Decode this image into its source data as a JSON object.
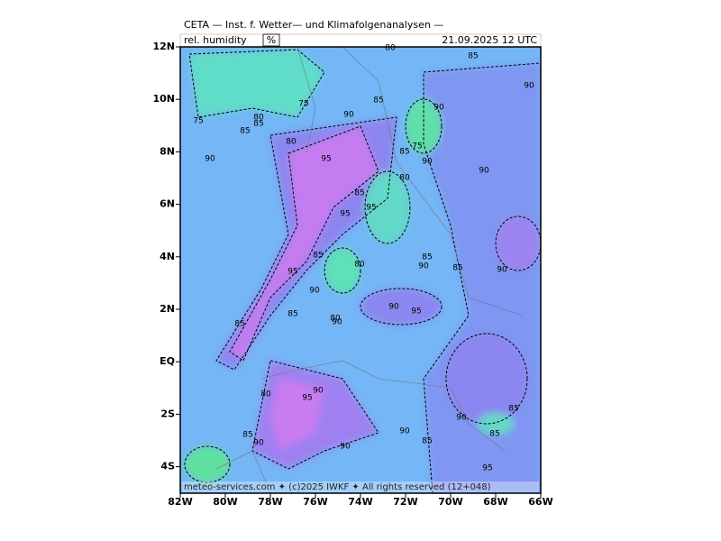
{
  "header": {
    "title": "CETA — Inst. f. Wetter— und Klimafolgenanalysen —",
    "variable": "rel. humidity",
    "unit": "%",
    "datetime": "21.09.2025 12 UTC"
  },
  "axes": {
    "lat_labels": [
      "12N",
      "10N",
      "8N",
      "6N",
      "4N",
      "2N",
      "EQ",
      "2S",
      "4S"
    ],
    "lon_labels": [
      "82W",
      "80W",
      "78W",
      "76W",
      "74W",
      "72W",
      "70W",
      "68W",
      "66W"
    ]
  },
  "contour_labels": [
    80,
    85,
    90,
    75,
    75,
    90,
    85,
    90,
    80,
    85,
    85,
    90,
    80,
    95,
    75,
    85,
    90,
    90,
    80,
    85,
    95,
    95,
    85,
    95,
    80,
    85,
    90,
    85,
    90,
    90,
    90,
    95,
    85,
    80,
    90,
    85,
    80,
    90,
    95,
    90,
    85,
    90,
    85,
    90,
    90,
    85,
    85,
    95
  ],
  "footer": "meteo-services.com ✦ (c)2025 IWKF ✦ All rights reserved (12+048)"
}
